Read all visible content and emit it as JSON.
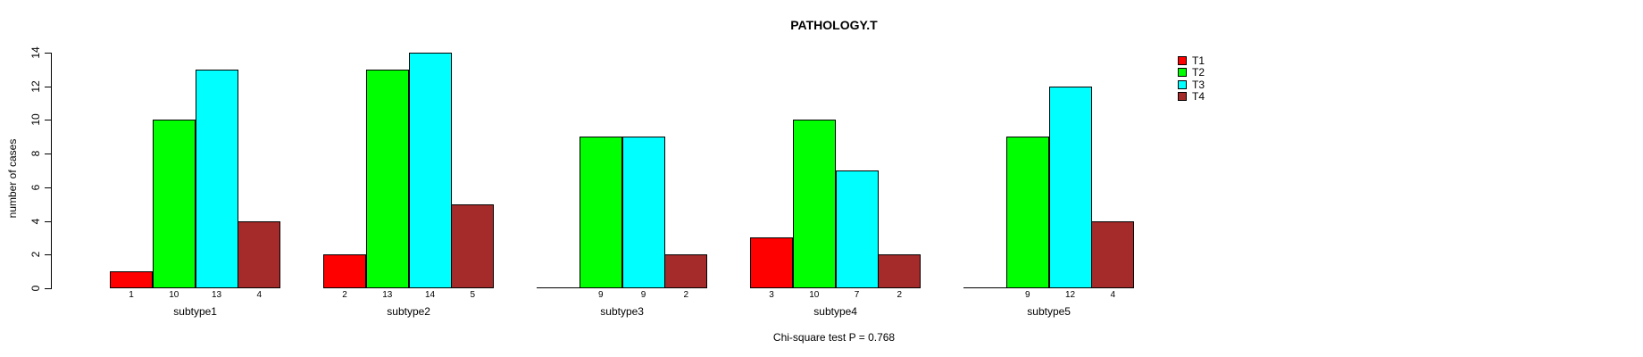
{
  "title": "PATHOLOGY.T",
  "annotation": "Chi-square test P = 0.768",
  "chart_data": {
    "type": "bar",
    "title": "PATHOLOGY.T",
    "xlabel": "",
    "ylabel": "number of cases",
    "categories": [
      "subtype1",
      "subtype2",
      "subtype3",
      "subtype4",
      "subtype5"
    ],
    "series": [
      {
        "name": "T1",
        "color": "#FF0000",
        "values": [
          1,
          2,
          0,
          3,
          0
        ]
      },
      {
        "name": "T2",
        "color": "#00FF00",
        "values": [
          10,
          13,
          9,
          10,
          9
        ]
      },
      {
        "name": "T3",
        "color": "#00FFFF",
        "values": [
          13,
          14,
          9,
          7,
          12
        ]
      },
      {
        "name": "T4",
        "color": "#A52A2A",
        "values": [
          4,
          5,
          2,
          2,
          4
        ]
      }
    ],
    "bar_value_labels_shown_for_zero": false,
    "ylim": [
      0,
      14
    ],
    "yticks": [
      0,
      2,
      4,
      6,
      8,
      10,
      12,
      14
    ],
    "grid": false,
    "legend_position": "right",
    "annotation": "Chi-square test P = 0.768"
  }
}
